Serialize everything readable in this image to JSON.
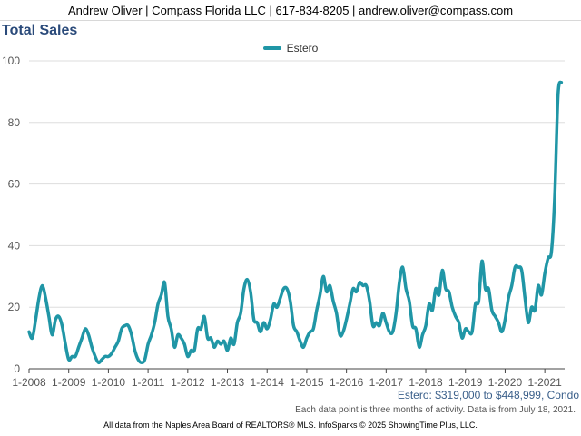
{
  "header": {
    "contact_line": "Andrew Oliver | Compass Florida LLC | 617-834-8205 | andrew.oliver@compass.com"
  },
  "chart_title": "Total Sales",
  "chart_data": {
    "type": "line",
    "title": "Total Sales",
    "xlabel": "",
    "ylabel": "",
    "ylim": [
      0,
      100
    ],
    "xlim": [
      "2008-01",
      "2021-07"
    ],
    "y_ticks": [
      "0",
      "20",
      "40",
      "60",
      "80",
      "100"
    ],
    "x_tick_labels": [
      "1-2008",
      "1-2009",
      "1-2010",
      "1-2011",
      "1-2012",
      "1-2013",
      "1-2014",
      "1-2015",
      "1-2016",
      "1-2017",
      "1-2018",
      "1-2019",
      "1-2020",
      "1-2021"
    ],
    "grid": "horizontal",
    "legend_position": "top-center",
    "series": [
      {
        "name": "Estero",
        "color": "#2096a6",
        "points": [
          [
            "2008-01",
            12
          ],
          [
            "2008-02",
            10
          ],
          [
            "2008-03",
            16
          ],
          [
            "2008-04",
            23
          ],
          [
            "2008-05",
            27
          ],
          [
            "2008-06",
            23
          ],
          [
            "2008-07",
            17
          ],
          [
            "2008-08",
            11
          ],
          [
            "2008-09",
            16
          ],
          [
            "2008-10",
            17
          ],
          [
            "2008-11",
            14
          ],
          [
            "2008-12",
            8
          ],
          [
            "2009-01",
            3
          ],
          [
            "2009-02",
            4
          ],
          [
            "2009-03",
            4
          ],
          [
            "2009-04",
            7
          ],
          [
            "2009-05",
            10
          ],
          [
            "2009-06",
            13
          ],
          [
            "2009-07",
            11
          ],
          [
            "2009-08",
            7
          ],
          [
            "2009-09",
            4
          ],
          [
            "2009-10",
            2
          ],
          [
            "2009-11",
            3
          ],
          [
            "2009-12",
            4
          ],
          [
            "2010-01",
            4
          ],
          [
            "2010-02",
            5
          ],
          [
            "2010-03",
            7
          ],
          [
            "2010-04",
            9
          ],
          [
            "2010-05",
            13
          ],
          [
            "2010-06",
            14
          ],
          [
            "2010-07",
            14
          ],
          [
            "2010-08",
            11
          ],
          [
            "2010-09",
            6
          ],
          [
            "2010-10",
            3
          ],
          [
            "2010-11",
            2
          ],
          [
            "2010-12",
            3
          ],
          [
            "2011-01",
            8
          ],
          [
            "2011-02",
            11
          ],
          [
            "2011-03",
            15
          ],
          [
            "2011-04",
            21
          ],
          [
            "2011-05",
            24
          ],
          [
            "2011-06",
            28
          ],
          [
            "2011-07",
            17
          ],
          [
            "2011-08",
            13
          ],
          [
            "2011-09",
            7
          ],
          [
            "2011-10",
            11
          ],
          [
            "2011-11",
            10
          ],
          [
            "2011-12",
            8
          ],
          [
            "2012-01",
            4
          ],
          [
            "2012-02",
            6
          ],
          [
            "2012-03",
            6
          ],
          [
            "2012-04",
            13
          ],
          [
            "2012-05",
            13
          ],
          [
            "2012-06",
            17
          ],
          [
            "2012-07",
            10
          ],
          [
            "2012-08",
            10
          ],
          [
            "2012-09",
            7
          ],
          [
            "2012-10",
            9
          ],
          [
            "2012-11",
            8
          ],
          [
            "2012-12",
            9
          ],
          [
            "2013-01",
            6
          ],
          [
            "2013-02",
            10
          ],
          [
            "2013-03",
            8
          ],
          [
            "2013-04",
            15
          ],
          [
            "2013-05",
            18
          ],
          [
            "2013-06",
            26
          ],
          [
            "2013-07",
            29
          ],
          [
            "2013-08",
            25
          ],
          [
            "2013-09",
            16
          ],
          [
            "2013-10",
            15
          ],
          [
            "2013-11",
            12
          ],
          [
            "2013-12",
            15
          ],
          [
            "2014-01",
            13
          ],
          [
            "2014-02",
            16
          ],
          [
            "2014-03",
            21
          ],
          [
            "2014-04",
            20
          ],
          [
            "2014-05",
            23
          ],
          [
            "2014-06",
            26
          ],
          [
            "2014-07",
            26
          ],
          [
            "2014-08",
            22
          ],
          [
            "2014-09",
            14
          ],
          [
            "2014-10",
            12
          ],
          [
            "2014-11",
            9
          ],
          [
            "2014-12",
            7
          ],
          [
            "2015-01",
            10
          ],
          [
            "2015-02",
            12
          ],
          [
            "2015-03",
            13
          ],
          [
            "2015-04",
            19
          ],
          [
            "2015-05",
            24
          ],
          [
            "2015-06",
            30
          ],
          [
            "2015-07",
            25
          ],
          [
            "2015-08",
            27
          ],
          [
            "2015-09",
            22
          ],
          [
            "2015-10",
            18
          ],
          [
            "2015-11",
            11
          ],
          [
            "2015-12",
            12
          ],
          [
            "2016-01",
            16
          ],
          [
            "2016-02",
            21
          ],
          [
            "2016-03",
            26
          ],
          [
            "2016-04",
            25
          ],
          [
            "2016-05",
            28
          ],
          [
            "2016-06",
            27
          ],
          [
            "2016-07",
            27
          ],
          [
            "2016-08",
            22
          ],
          [
            "2016-09",
            14
          ],
          [
            "2016-10",
            15
          ],
          [
            "2016-11",
            14
          ],
          [
            "2016-12",
            18
          ],
          [
            "2017-01",
            15
          ],
          [
            "2017-02",
            12
          ],
          [
            "2017-03",
            12
          ],
          [
            "2017-04",
            18
          ],
          [
            "2017-05",
            28
          ],
          [
            "2017-06",
            33
          ],
          [
            "2017-07",
            26
          ],
          [
            "2017-08",
            22
          ],
          [
            "2017-09",
            14
          ],
          [
            "2017-10",
            13
          ],
          [
            "2017-11",
            7
          ],
          [
            "2017-12",
            11
          ],
          [
            "2018-01",
            14
          ],
          [
            "2018-02",
            21
          ],
          [
            "2018-03",
            19
          ],
          [
            "2018-04",
            26
          ],
          [
            "2018-05",
            24
          ],
          [
            "2018-06",
            32
          ],
          [
            "2018-07",
            26
          ],
          [
            "2018-08",
            25
          ],
          [
            "2018-09",
            20
          ],
          [
            "2018-10",
            17
          ],
          [
            "2018-11",
            15
          ],
          [
            "2018-12",
            10
          ],
          [
            "2019-01",
            13
          ],
          [
            "2019-02",
            12
          ],
          [
            "2019-03",
            12
          ],
          [
            "2019-04",
            21
          ],
          [
            "2019-05",
            22
          ],
          [
            "2019-06",
            35
          ],
          [
            "2019-07",
            26
          ],
          [
            "2019-08",
            26
          ],
          [
            "2019-09",
            19
          ],
          [
            "2019-10",
            17
          ],
          [
            "2019-11",
            15
          ],
          [
            "2019-12",
            12
          ],
          [
            "2020-01",
            16
          ],
          [
            "2020-02",
            23
          ],
          [
            "2020-03",
            27
          ],
          [
            "2020-04",
            33
          ],
          [
            "2020-05",
            33
          ],
          [
            "2020-06",
            32
          ],
          [
            "2020-07",
            23
          ],
          [
            "2020-08",
            15
          ],
          [
            "2020-09",
            20
          ],
          [
            "2020-10",
            19
          ],
          [
            "2020-11",
            27
          ],
          [
            "2020-12",
            24
          ],
          [
            "2021-01",
            31
          ],
          [
            "2021-02",
            36
          ],
          [
            "2021-03",
            38
          ],
          [
            "2021-04",
            56
          ],
          [
            "2021-05",
            89
          ],
          [
            "2021-06",
            93
          ]
        ]
      }
    ]
  },
  "subtitle": "Estero: $319,000 to $448,999, Condo",
  "note": "Each data point is three months of activity. Data is from July 18, 2021.",
  "footer": "All data from the Naples Area Board of REALTORS® MLS. InfoSparks © 2025 ShowingTime Plus, LLC."
}
